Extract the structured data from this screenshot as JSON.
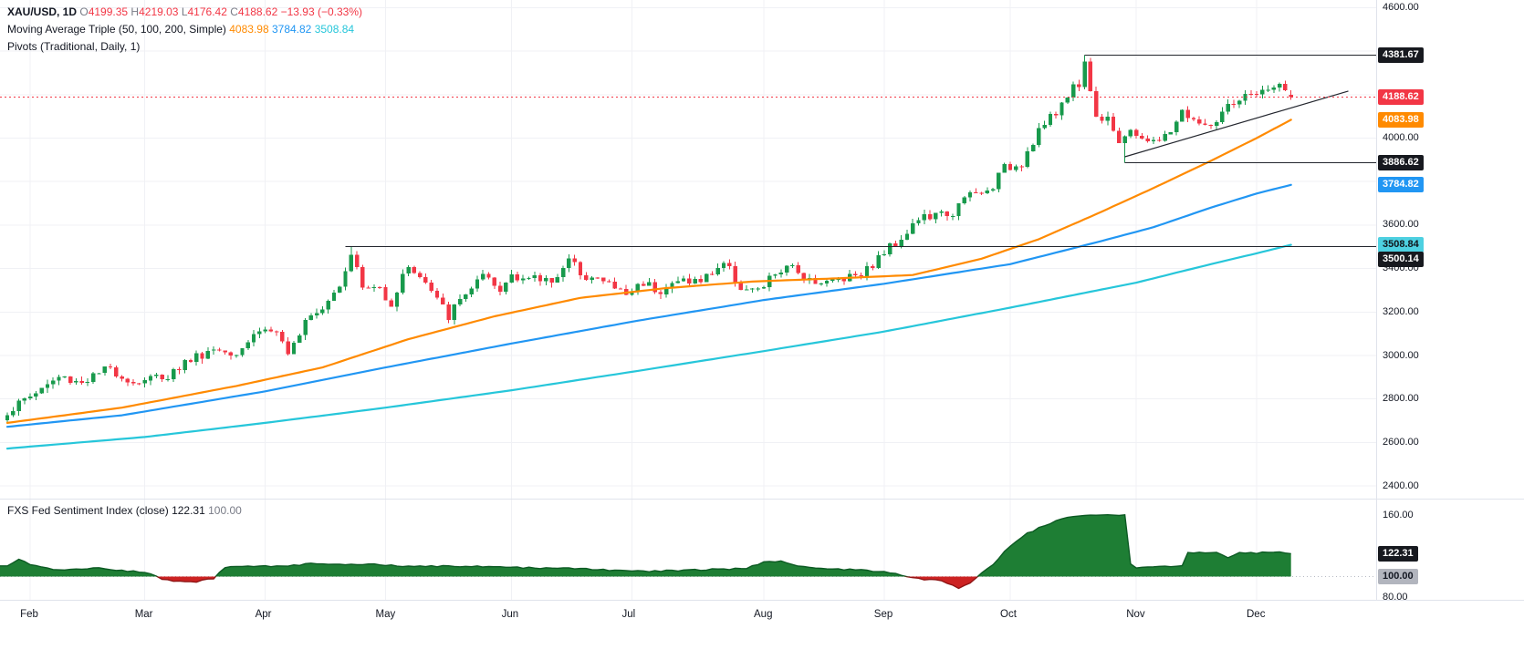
{
  "legend": {
    "rows": [
      {
        "name": "symbol",
        "parts": [
          {
            "text": "XAU/USD, 1D  ",
            "color": "#131722",
            "bold": true
          },
          {
            "text": "O",
            "color": "#787b86"
          },
          {
            "text": "4199.35 ",
            "color": "#f23645"
          },
          {
            "text": "H",
            "color": "#787b86"
          },
          {
            "text": "4219.03 ",
            "color": "#f23645"
          },
          {
            "text": "L",
            "color": "#787b86"
          },
          {
            "text": "4176.42 ",
            "color": "#f23645"
          },
          {
            "text": "C",
            "color": "#787b86"
          },
          {
            "text": "4188.62 ",
            "color": "#f23645"
          },
          {
            "text": "−13.93 (−0.33%)",
            "color": "#f23645"
          }
        ]
      },
      {
        "name": "ma-triple",
        "parts": [
          {
            "text": "Moving Average Triple (50, 100, 200, Simple) ",
            "color": "#131722"
          },
          {
            "text": "4083.98 ",
            "color": "#ff8a00"
          },
          {
            "text": "3784.82 ",
            "color": "#2196f3"
          },
          {
            "text": "3508.84",
            "color": "#26c6da"
          }
        ]
      },
      {
        "name": "pivots",
        "parts": [
          {
            "text": "Pivots (Traditional, Daily, 1)",
            "color": "#131722"
          }
        ]
      }
    ]
  },
  "sub_legend": {
    "parts": [
      {
        "text": "FXS Fed Sentiment Index (close)  ",
        "color": "#131722"
      },
      {
        "text": "122.31  ",
        "color": "#131722"
      },
      {
        "text": "100.00",
        "color": "#787b86"
      }
    ]
  },
  "axes": {
    "price_ticks": [
      {
        "label": "4600.00",
        "value": 4600
      },
      {
        "label": "4000.00",
        "value": 4000
      },
      {
        "label": "3600.00",
        "value": 3600
      },
      {
        "label": "3400.00",
        "value": 3400
      },
      {
        "label": "3200.00",
        "value": 3200
      },
      {
        "label": "3000.00",
        "value": 3000
      },
      {
        "label": "2800.00",
        "value": 2800
      },
      {
        "label": "2600.00",
        "value": 2600
      },
      {
        "label": "2400.00",
        "value": 2400
      }
    ],
    "price_badges": [
      {
        "label": "4381.67",
        "value": 4381.67,
        "bg": "#17191f",
        "fg": "#ffffff",
        "dy": 0
      },
      {
        "label": "4188.62",
        "value": 4188.62,
        "bg": "#f23645",
        "fg": "#ffffff",
        "dy": 0
      },
      {
        "label": "4083.98",
        "value": 4083.98,
        "bg": "#ff8a00",
        "fg": "#ffffff",
        "dy": 0
      },
      {
        "label": "3886.62",
        "value": 3886.62,
        "bg": "#17191f",
        "fg": "#ffffff",
        "dy": 0
      },
      {
        "label": "3784.82",
        "value": 3784.82,
        "bg": "#2196f3",
        "fg": "#ffffff",
        "dy": 0
      },
      {
        "label": "3508.84",
        "value": 3508.84,
        "bg": "#4dd0e1",
        "fg": "#10131a",
        "dy": 0
      },
      {
        "label": "3500.14",
        "value": 3500.14,
        "bg": "#17191f",
        "fg": "#ffffff",
        "dy": 14
      }
    ],
    "sub_ticks": [
      {
        "label": "160.00",
        "value": 160
      },
      {
        "label": "80.00",
        "value": 80
      }
    ],
    "sub_badges": [
      {
        "label": "122.31",
        "value": 122.31,
        "bg": "#17191f",
        "fg": "#ffffff",
        "dy": 0
      },
      {
        "label": "100.00",
        "value": 100,
        "bg": "#b2b5be",
        "fg": "#131722",
        "dy": 0
      }
    ],
    "months": [
      {
        "label": "Feb",
        "day": 4
      },
      {
        "label": "Mar",
        "day": 24
      },
      {
        "label": "Apr",
        "day": 45
      },
      {
        "label": "May",
        "day": 66
      },
      {
        "label": "Jun",
        "day": 88
      },
      {
        "label": "Jul",
        "day": 109
      },
      {
        "label": "Aug",
        "day": 132
      },
      {
        "label": "Sep",
        "day": 153
      },
      {
        "label": "Oct",
        "day": 175
      },
      {
        "label": "Nov",
        "day": 197
      },
      {
        "label": "Dec",
        "day": 218
      }
    ]
  },
  "chart_data": {
    "type": "candlestick",
    "title": "XAU/USD, 1D",
    "interval": "1D",
    "last_bar": {
      "open": 4199.35,
      "high": 4219.03,
      "low": 4176.42,
      "close": 4188.62,
      "change": "−13.93",
      "change_pct": "−0.33%"
    },
    "x_days": 225,
    "ylim": [
      2350,
      4635
    ],
    "candle_colors": {
      "up": "#189a4c",
      "down": "#f23645"
    },
    "noise": {
      "seed": 1337,
      "close_amp": 24,
      "wick_amp": 22,
      "sent_amp": 0.7
    },
    "close_waypoints": [
      [
        0,
        2740
      ],
      [
        4,
        2815
      ],
      [
        9,
        2900
      ],
      [
        13,
        2880
      ],
      [
        18,
        2940
      ],
      [
        22,
        2875
      ],
      [
        24,
        2890
      ],
      [
        28,
        2910
      ],
      [
        32,
        2985
      ],
      [
        36,
        3030
      ],
      [
        40,
        3020
      ],
      [
        44,
        3120
      ],
      [
        47,
        3110
      ],
      [
        49,
        2985
      ],
      [
        52,
        3180
      ],
      [
        55,
        3230
      ],
      [
        58,
        3330
      ],
      [
        60,
        3480
      ],
      [
        62,
        3310
      ],
      [
        65,
        3310
      ],
      [
        67,
        3240
      ],
      [
        70,
        3420
      ],
      [
        73,
        3330
      ],
      [
        77,
        3180
      ],
      [
        80,
        3290
      ],
      [
        83,
        3360
      ],
      [
        86,
        3290
      ],
      [
        88,
        3380
      ],
      [
        91,
        3350
      ],
      [
        95,
        3350
      ],
      [
        98,
        3430
      ],
      [
        101,
        3370
      ],
      [
        105,
        3330
      ],
      [
        108,
        3280
      ],
      [
        111,
        3340
      ],
      [
        114,
        3300
      ],
      [
        118,
        3350
      ],
      [
        121,
        3340
      ],
      [
        125,
        3430
      ],
      [
        128,
        3315
      ],
      [
        131,
        3290
      ],
      [
        134,
        3380
      ],
      [
        137,
        3400
      ],
      [
        140,
        3355
      ],
      [
        143,
        3335
      ],
      [
        147,
        3370
      ],
      [
        150,
        3395
      ],
      [
        153,
        3475
      ],
      [
        156,
        3545
      ],
      [
        159,
        3630
      ],
      [
        162,
        3640
      ],
      [
        165,
        3660
      ],
      [
        168,
        3740
      ],
      [
        171,
        3750
      ],
      [
        174,
        3860
      ],
      [
        177,
        3890
      ],
      [
        180,
        4040
      ],
      [
        183,
        4110
      ],
      [
        185,
        4210
      ],
      [
        187,
        4250
      ],
      [
        188,
        4355
      ],
      [
        190,
        4090
      ],
      [
        192,
        4110
      ],
      [
        194,
        3985
      ],
      [
        196,
        4015
      ],
      [
        198,
        4010
      ],
      [
        200,
        3975
      ],
      [
        202,
        4000
      ],
      [
        205,
        4120
      ],
      [
        207,
        4085
      ],
      [
        209,
        4045
      ],
      [
        211,
        4080
      ],
      [
        213,
        4135
      ],
      [
        215,
        4160
      ],
      [
        217,
        4215
      ],
      [
        219,
        4205
      ],
      [
        221,
        4240
      ],
      [
        223,
        4215
      ],
      [
        224,
        4188.62
      ]
    ],
    "pins": [
      {
        "day": 60,
        "high": 3500.14
      },
      {
        "day": 188,
        "high": 4381.67
      },
      {
        "day": 195,
        "low": 3886.62
      },
      {
        "day": 224,
        "open": 4199.35,
        "high": 4219.03,
        "low": 4176.42,
        "close": 4188.62
      }
    ],
    "moving_averages": [
      {
        "name": "SMA 50",
        "period": 50,
        "color": "#ff8a00",
        "last": "4083.98",
        "waypoints": [
          [
            0,
            2690
          ],
          [
            20,
            2760
          ],
          [
            40,
            2860
          ],
          [
            55,
            2945
          ],
          [
            70,
            3075
          ],
          [
            85,
            3180
          ],
          [
            100,
            3265
          ],
          [
            115,
            3310
          ],
          [
            130,
            3340
          ],
          [
            145,
            3355
          ],
          [
            158,
            3370
          ],
          [
            170,
            3445
          ],
          [
            180,
            3535
          ],
          [
            190,
            3650
          ],
          [
            200,
            3770
          ],
          [
            210,
            3895
          ],
          [
            218,
            4000
          ],
          [
            224,
            4083.98
          ]
        ]
      },
      {
        "name": "SMA 100",
        "period": 100,
        "color": "#2196f3",
        "last": "3784.82",
        "waypoints": [
          [
            0,
            2672
          ],
          [
            20,
            2725
          ],
          [
            45,
            2835
          ],
          [
            66,
            2945
          ],
          [
            88,
            3055
          ],
          [
            110,
            3160
          ],
          [
            132,
            3255
          ],
          [
            153,
            3330
          ],
          [
            175,
            3420
          ],
          [
            190,
            3520
          ],
          [
            200,
            3590
          ],
          [
            210,
            3680
          ],
          [
            218,
            3745
          ],
          [
            224,
            3784.82
          ]
        ]
      },
      {
        "name": "SMA 200",
        "period": 200,
        "color": "#26c6da",
        "last": "3508.84",
        "waypoints": [
          [
            0,
            2572
          ],
          [
            24,
            2625
          ],
          [
            45,
            2690
          ],
          [
            66,
            2760
          ],
          [
            88,
            2840
          ],
          [
            109,
            2925
          ],
          [
            132,
            3020
          ],
          [
            153,
            3110
          ],
          [
            175,
            3220
          ],
          [
            197,
            3335
          ],
          [
            210,
            3420
          ],
          [
            218,
            3470
          ],
          [
            224,
            3508.84
          ]
        ]
      }
    ],
    "levels": [
      {
        "price": 4381.67,
        "from_day": 188
      },
      {
        "price": 3886.62,
        "from_day": 195
      },
      {
        "price": 3500.14,
        "from_day": 59
      }
    ],
    "trendline": {
      "from": [
        195,
        3914
      ],
      "to": [
        234,
        4216
      ]
    },
    "last_price_line": {
      "price": 4188.62,
      "color": "#f23645"
    },
    "sentiment": {
      "name": "FXS Fed Sentiment Index (close)",
      "last": 122.31,
      "baseline": 100,
      "vlim": [
        77.3,
        175.1
      ],
      "fill_up": "#1e7e34",
      "fill_down": "#cc2222",
      "waypoints": [
        [
          0,
          111
        ],
        [
          2,
          117
        ],
        [
          4,
          112
        ],
        [
          8,
          107
        ],
        [
          12,
          107
        ],
        [
          16,
          108
        ],
        [
          20,
          106
        ],
        [
          24,
          104
        ],
        [
          27,
          98
        ],
        [
          30,
          95
        ],
        [
          33,
          95
        ],
        [
          36,
          98
        ],
        [
          38,
          109
        ],
        [
          42,
          110
        ],
        [
          46,
          110
        ],
        [
          50,
          111
        ],
        [
          54,
          113
        ],
        [
          58,
          112
        ],
        [
          64,
          112
        ],
        [
          70,
          110
        ],
        [
          76,
          110
        ],
        [
          82,
          110
        ],
        [
          88,
          109
        ],
        [
          94,
          108
        ],
        [
          100,
          108
        ],
        [
          106,
          106
        ],
        [
          112,
          105
        ],
        [
          118,
          106
        ],
        [
          124,
          107
        ],
        [
          129,
          108
        ],
        [
          132,
          114
        ],
        [
          135,
          115
        ],
        [
          138,
          110
        ],
        [
          142,
          108
        ],
        [
          146,
          107
        ],
        [
          150,
          106
        ],
        [
          154,
          104
        ],
        [
          157,
          100
        ],
        [
          160,
          97
        ],
        [
          163,
          96
        ],
        [
          166,
          89
        ],
        [
          168,
          94
        ],
        [
          170,
          103
        ],
        [
          172,
          112
        ],
        [
          174,
          124
        ],
        [
          176,
          134
        ],
        [
          178,
          142
        ],
        [
          181,
          150
        ],
        [
          184,
          156
        ],
        [
          187,
          159
        ],
        [
          190,
          160
        ],
        [
          195,
          160
        ],
        [
          196,
          112
        ],
        [
          197,
          108
        ],
        [
          200,
          109
        ],
        [
          203,
          110
        ],
        [
          205,
          110
        ],
        [
          206,
          123
        ],
        [
          208,
          124
        ],
        [
          211,
          123
        ],
        [
          213,
          118
        ],
        [
          215,
          123
        ],
        [
          218,
          123
        ],
        [
          221,
          124
        ],
        [
          224,
          122.31
        ]
      ]
    }
  }
}
